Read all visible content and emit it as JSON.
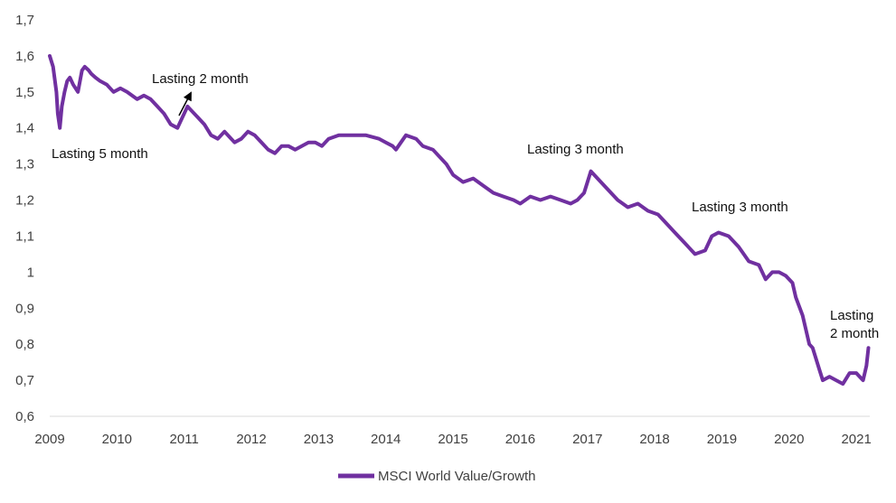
{
  "chart_data": {
    "type": "line",
    "title": "",
    "xlabel": "",
    "ylabel": "",
    "xlim": [
      2009,
      2021.2
    ],
    "ylim": [
      0.6,
      1.7
    ],
    "x_ticks": [
      "2009",
      "2010",
      "2011",
      "2012",
      "2013",
      "2014",
      "2015",
      "2016",
      "2017",
      "2018",
      "2019",
      "2020",
      "2021"
    ],
    "y_ticks": [
      "0,6",
      "0,7",
      "0,8",
      "0,9",
      "1",
      "1,1",
      "1,2",
      "1,3",
      "1,4",
      "1,5",
      "1,6",
      "1,7"
    ],
    "grid": false,
    "legend_position": "bottom",
    "colors": {
      "series": "#7030A0",
      "arrow": "#000000"
    },
    "series": [
      {
        "name": "MSCI World Value/Growth",
        "x": [
          2009.0,
          2009.05,
          2009.1,
          2009.12,
          2009.15,
          2009.18,
          2009.22,
          2009.26,
          2009.3,
          2009.35,
          2009.42,
          2009.48,
          2009.52,
          2009.58,
          2009.62,
          2009.68,
          2009.75,
          2009.85,
          2009.95,
          2010.05,
          2010.15,
          2010.3,
          2010.4,
          2010.5,
          2010.6,
          2010.7,
          2010.8,
          2010.9,
          2010.95,
          2011.0,
          2011.05,
          2011.1,
          2011.2,
          2011.3,
          2011.4,
          2011.5,
          2011.6,
          2011.75,
          2011.85,
          2011.95,
          2012.05,
          2012.15,
          2012.25,
          2012.35,
          2012.45,
          2012.55,
          2012.65,
          2012.75,
          2012.85,
          2012.95,
          2013.05,
          2013.15,
          2013.3,
          2013.5,
          2013.7,
          2013.9,
          2014.0,
          2014.1,
          2014.15,
          2014.3,
          2014.45,
          2014.55,
          2014.7,
          2014.8,
          2014.9,
          2015.0,
          2015.15,
          2015.3,
          2015.45,
          2015.6,
          2015.75,
          2015.9,
          2016.0,
          2016.15,
          2016.3,
          2016.45,
          2016.6,
          2016.75,
          2016.85,
          2016.95,
          2017.05,
          2017.15,
          2017.3,
          2017.45,
          2017.6,
          2017.75,
          2017.9,
          2018.05,
          2018.15,
          2018.3,
          2018.45,
          2018.6,
          2018.75,
          2018.85,
          2018.95,
          2019.1,
          2019.25,
          2019.4,
          2019.55,
          2019.65,
          2019.75,
          2019.85,
          2019.95,
          2020.05,
          2020.1,
          2020.2,
          2020.25,
          2020.3,
          2020.35,
          2020.45,
          2020.5,
          2020.6,
          2020.7,
          2020.8,
          2020.9,
          2021.0,
          2021.05,
          2021.1,
          2021.15,
          2021.18
        ],
        "values": [
          1.6,
          1.57,
          1.5,
          1.44,
          1.4,
          1.46,
          1.5,
          1.53,
          1.54,
          1.52,
          1.5,
          1.56,
          1.57,
          1.56,
          1.55,
          1.54,
          1.53,
          1.52,
          1.5,
          1.51,
          1.5,
          1.48,
          1.49,
          1.48,
          1.46,
          1.44,
          1.41,
          1.4,
          1.42,
          1.44,
          1.46,
          1.45,
          1.43,
          1.41,
          1.38,
          1.37,
          1.39,
          1.36,
          1.37,
          1.39,
          1.38,
          1.36,
          1.34,
          1.33,
          1.35,
          1.35,
          1.34,
          1.35,
          1.36,
          1.36,
          1.35,
          1.37,
          1.38,
          1.38,
          1.38,
          1.37,
          1.36,
          1.35,
          1.34,
          1.38,
          1.37,
          1.35,
          1.34,
          1.32,
          1.3,
          1.27,
          1.25,
          1.26,
          1.24,
          1.22,
          1.21,
          1.2,
          1.19,
          1.21,
          1.2,
          1.21,
          1.2,
          1.19,
          1.2,
          1.22,
          1.28,
          1.26,
          1.23,
          1.2,
          1.18,
          1.19,
          1.17,
          1.16,
          1.14,
          1.11,
          1.08,
          1.05,
          1.06,
          1.1,
          1.11,
          1.1,
          1.07,
          1.03,
          1.02,
          0.98,
          1.0,
          1.0,
          0.99,
          0.97,
          0.93,
          0.88,
          0.84,
          0.8,
          0.79,
          0.73,
          0.7,
          0.71,
          0.7,
          0.69,
          0.72,
          0.72,
          0.71,
          0.7,
          0.74,
          0.79
        ]
      }
    ],
    "annotations": [
      {
        "text": "Lasting 5 month"
      },
      {
        "text": "Lasting 2 month"
      },
      {
        "text": "Lasting 3 month"
      },
      {
        "text": "Lasting 3 month"
      },
      {
        "text_lines": [
          "Lasting",
          "2 month"
        ]
      }
    ]
  }
}
